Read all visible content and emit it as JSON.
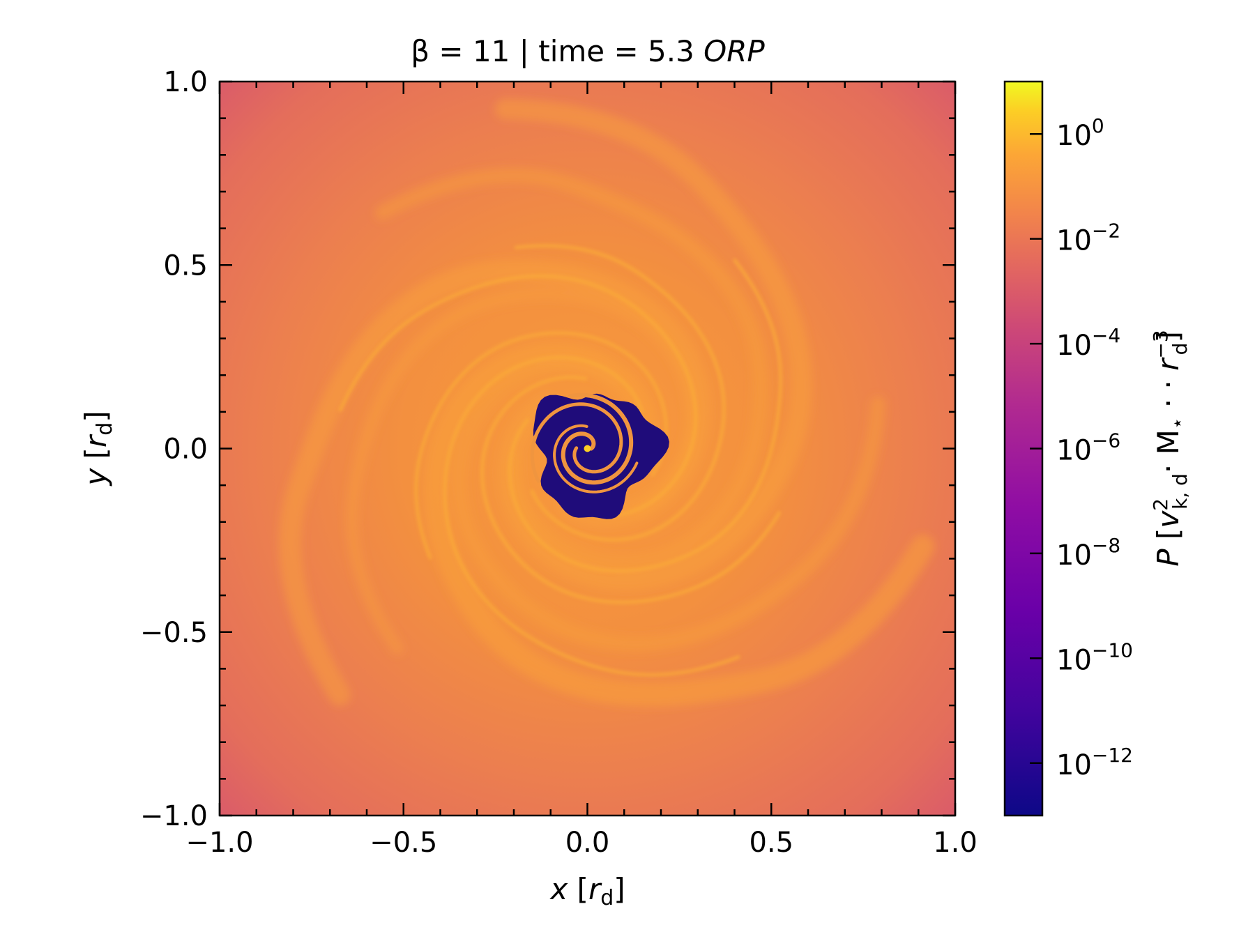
{
  "chart_data": {
    "type": "heatmap",
    "title": {
      "pre": "β = 11 | time = 5.3 ",
      "italic": "ORP"
    },
    "xlabel": {
      "var": "x",
      "unit": "r",
      "sub": "d"
    },
    "ylabel": {
      "var": "y",
      "unit": "r",
      "sub": "d"
    },
    "x_ticks": [
      -1.0,
      -0.5,
      0.0,
      0.5,
      1.0
    ],
    "y_ticks": [
      -1.0,
      -0.5,
      0.0,
      0.5,
      1.0
    ],
    "x_tick_labels": [
      "−1.0",
      "−0.5",
      "0.0",
      "0.5",
      "1.0"
    ],
    "y_tick_labels": [
      "−1.0",
      "−0.5",
      "0.0",
      "0.5",
      "1.0"
    ],
    "xlim": [
      -1.0,
      1.0
    ],
    "ylim": [
      -1.0,
      1.0
    ],
    "colormap": "plasma",
    "colorbar": {
      "scale": "log",
      "range": [
        1e-13,
        10
      ],
      "label": "P [v²k,d · M⋆ · r⁻³d]",
      "ticks": [
        {
          "exp": 0,
          "base": "10",
          "sup": "0"
        },
        {
          "exp": -2,
          "base": "10",
          "sup": "−2"
        },
        {
          "exp": -4,
          "base": "10",
          "sup": "−4"
        },
        {
          "exp": -6,
          "base": "10",
          "sup": "−6"
        },
        {
          "exp": -8,
          "base": "10",
          "sup": "−8"
        },
        {
          "exp": -10,
          "base": "10",
          "sup": "−10"
        },
        {
          "exp": -12,
          "base": "10",
          "sup": "−12"
        }
      ]
    },
    "field_description": "spiral pressure field, inner cavity ~1e-12 within r≈0.18, outer disk ~1e-3 to 1e-2",
    "colors": {
      "outer": "#d9596b",
      "disk": "#ee7e4a",
      "arm": "#f9a03c",
      "cavity": "#1f0c7a"
    }
  }
}
